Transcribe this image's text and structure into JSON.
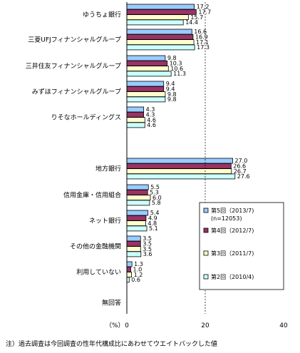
{
  "chart_data": {
    "type": "bar",
    "orientation": "horizontal",
    "categories": [
      "ゆうちょ銀行",
      "三菱UFJフィナンシャルグループ",
      "三井住友フィナンシャルグループ",
      "みずほフィナンシャルグループ",
      "りそなホールディングス",
      "地方銀行",
      "信用金庫・信用組合",
      "ネット銀行",
      "その他の金融機関",
      "利用していない",
      "無回答"
    ],
    "series": [
      {
        "name": "第5回（2013/7)",
        "name_line2": "(n=12053)",
        "color": "#99ccff",
        "values": [
          17.2,
          16.6,
          9.8,
          9.4,
          4.3,
          27.0,
          5.5,
          5.4,
          3.5,
          1.3,
          null
        ]
      },
      {
        "name": "第4回（2012/7)",
        "color": "#993366",
        "values": [
          17.7,
          16.9,
          10.3,
          9.4,
          4.3,
          26.6,
          5.3,
          4.9,
          3.5,
          1.0,
          null
        ]
      },
      {
        "name": "第3回（2011/7)",
        "color": "#ffffcc",
        "values": [
          15.7,
          17.1,
          10.6,
          9.8,
          4.6,
          26.7,
          6.0,
          4.8,
          3.5,
          1.2,
          null
        ]
      },
      {
        "name": "第2回（2010/4)",
        "color": "#ccffff",
        "values": [
          14.4,
          17.3,
          11.3,
          9.8,
          4.6,
          27.6,
          5.8,
          5.1,
          3.6,
          0.6,
          null
        ]
      }
    ],
    "xlim": [
      0,
      40
    ],
    "xticks": [
      "0",
      "20",
      "40"
    ],
    "unit_label": "（%）",
    "gridline_dashed_at": 20,
    "legend_position": "right"
  },
  "footnote": "注）過去調査は今回調査の性年代構成比にあわせてウエイトバックした値"
}
